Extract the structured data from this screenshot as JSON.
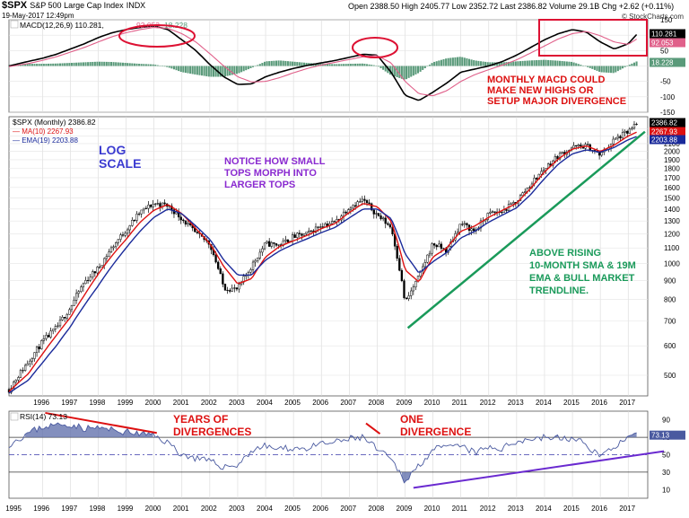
{
  "header": {
    "symbol": "$SPX",
    "name": "S&P 500 Large Cap Index",
    "exchange": "INDX",
    "date": "19-May-2017 12:49pm",
    "ohlc": "Open 2388.50  High 2405.77  Low 2352.72  Last 2386.82  Volume 29.1B  Chg +2.62 (+0.11%)",
    "credit": "© StockCharts.com"
  },
  "chart_data": [
    {
      "type": "line",
      "panel": "MACD",
      "legend": "MACD(12,26,9) 110.281, 92.053, 18.228",
      "legend_values": [
        "110.281",
        "92.053",
        "18.228"
      ],
      "ylim": [
        -150,
        150
      ],
      "ticks": [
        150,
        100,
        50,
        0,
        -50,
        -100,
        -150
      ],
      "tick_labels": [
        "150",
        "100",
        "50",
        "",
        "-50",
        "-100",
        "-150"
      ],
      "last_labels": [
        "110.281",
        "92.053",
        "18.228"
      ],
      "x": [
        1994.8,
        1995.5,
        1996,
        1996.5,
        1997,
        1997.5,
        1998,
        1998.5,
        1999,
        1999.5,
        2000,
        2000.5,
        2001,
        2001.5,
        2002,
        2002.5,
        2003,
        2003.5,
        2004,
        2004.5,
        2005,
        2005.5,
        2006,
        2006.5,
        2007,
        2007.5,
        2008,
        2008.5,
        2009,
        2009.5,
        2010,
        2010.5,
        2011,
        2011.5,
        2012,
        2012.5,
        2013,
        2013.5,
        2014,
        2014.5,
        2015,
        2015.5,
        2016,
        2016.5,
        2017,
        2017.38
      ],
      "series": [
        {
          "name": "MACD",
          "color": "#000000",
          "values": [
            0,
            15,
            25,
            38,
            55,
            72,
            92,
            108,
            118,
            125,
            130,
            118,
            85,
            50,
            5,
            -35,
            -60,
            -58,
            -35,
            -20,
            -8,
            2,
            10,
            18,
            28,
            38,
            35,
            -20,
            -95,
            -112,
            -85,
            -55,
            -20,
            -10,
            0,
            15,
            35,
            60,
            85,
            105,
            118,
            110,
            78,
            55,
            72,
            110
          ]
        },
        {
          "name": "Signal",
          "color": "#e0608a",
          "values": [
            -2,
            8,
            18,
            30,
            45,
            60,
            78,
            95,
            108,
            118,
            125,
            122,
            105,
            78,
            40,
            0,
            -35,
            -52,
            -50,
            -38,
            -22,
            -8,
            3,
            12,
            21,
            30,
            34,
            10,
            -50,
            -90,
            -97,
            -80,
            -50,
            -28,
            -12,
            3,
            20,
            42,
            65,
            88,
            105,
            112,
            98,
            78,
            70,
            92
          ]
        }
      ],
      "histogram": {
        "name": "Histogram",
        "values": [
          2,
          7,
          7,
          8,
          10,
          12,
          14,
          13,
          10,
          7,
          5,
          -4,
          -20,
          -28,
          -35,
          -35,
          -25,
          -6,
          15,
          18,
          14,
          10,
          7,
          6,
          7,
          8,
          1,
          -30,
          -45,
          -22,
          12,
          25,
          30,
          18,
          12,
          12,
          15,
          18,
          20,
          17,
          13,
          -2,
          -20,
          -23,
          2,
          18
        ]
      },
      "annotation": {
        "lines": [
          "MONTHLY MACD COULD",
          "MAKE NEW HIGHS OR",
          "SETUP MAJOR DIVERGENCE"
        ],
        "color": "#dd1111"
      }
    },
    {
      "type": "candlestick",
      "panel": "Price",
      "scale": "log",
      "legend_title": "$SPX (Monthly) 2386.82",
      "legend_ma": "MA(10) 2267.93",
      "legend_ema": "EMA(19) 2203.88",
      "last_labels": [
        "2386.82",
        "2267.93",
        "2203.88"
      ],
      "ylim": [
        440,
        2480
      ],
      "ticks": [
        500,
        600,
        700,
        800,
        900,
        1000,
        1100,
        1200,
        1300,
        1400,
        1500,
        1600,
        1700,
        1800,
        1900,
        2000,
        2100,
        2200,
        2300
      ],
      "x_labels": [
        "1996",
        "1997",
        "1998",
        "1999",
        "2000",
        "2001",
        "2002",
        "2003",
        "2004",
        "2005",
        "2006",
        "2007",
        "2008",
        "2009",
        "2010",
        "2011",
        "2012",
        "2013",
        "2014",
        "2015",
        "2016",
        "2017"
      ],
      "x": [
        1994.8,
        1995.5,
        1996,
        1996.5,
        1997,
        1997.5,
        1998,
        1998.5,
        1999,
        1999.5,
        2000,
        2000.5,
        2001,
        2001.5,
        2002,
        2002.5,
        2003,
        2003.5,
        2004,
        2004.5,
        2005,
        2005.5,
        2006,
        2006.5,
        2007,
        2007.5,
        2008,
        2008.5,
        2009,
        2009.5,
        2010,
        2010.5,
        2011,
        2011.5,
        2012,
        2012.5,
        2013,
        2013.5,
        2014,
        2014.5,
        2015,
        2015.5,
        2016,
        2016.5,
        2017,
        2017.38
      ],
      "series": [
        {
          "name": "Close",
          "color": "#000000",
          "values": [
            458,
            545,
            615,
            670,
            760,
            890,
            970,
            1105,
            1230,
            1372,
            1450,
            1430,
            1320,
            1200,
            1130,
            860,
            850,
            985,
            1130,
            1120,
            1180,
            1200,
            1270,
            1290,
            1420,
            1480,
            1350,
            1250,
            780,
            920,
            1130,
            1080,
            1280,
            1220,
            1360,
            1380,
            1470,
            1630,
            1800,
            1950,
            2050,
            2070,
            1950,
            2150,
            2260,
            2386
          ]
        },
        {
          "name": "MA(10)",
          "color": "#dd1111",
          "values": [
            452,
            505,
            570,
            640,
            715,
            820,
            935,
            1050,
            1160,
            1290,
            1390,
            1440,
            1360,
            1240,
            1130,
            980,
            880,
            910,
            1040,
            1110,
            1150,
            1190,
            1240,
            1280,
            1370,
            1450,
            1420,
            1300,
            960,
            890,
            1040,
            1100,
            1220,
            1260,
            1330,
            1390,
            1450,
            1590,
            1760,
            1910,
            2030,
            2070,
            2000,
            2080,
            2200,
            2268
          ]
        },
        {
          "name": "EMA(19)",
          "color": "#1a2a9a",
          "values": [
            448,
            485,
            540,
            600,
            675,
            770,
            870,
            985,
            1100,
            1220,
            1330,
            1400,
            1360,
            1260,
            1160,
            1020,
            930,
            930,
            1020,
            1080,
            1125,
            1165,
            1210,
            1250,
            1325,
            1400,
            1400,
            1320,
            1060,
            940,
            1010,
            1070,
            1170,
            1220,
            1290,
            1350,
            1410,
            1530,
            1690,
            1850,
            1970,
            2020,
            1990,
            2050,
            2150,
            2204
          ]
        }
      ],
      "trendline": {
        "x": [
          2009.1,
          2017.6
        ],
        "y": [
          670,
          2260
        ],
        "color": "#1a9a5a"
      },
      "annotations": [
        {
          "id": "log",
          "lines": [
            "LOG",
            "SCALE"
          ],
          "color": "#3a3ad0"
        },
        {
          "id": "tops",
          "lines": [
            "NOTICE HOW SMALL",
            "TOPS MORPH INTO",
            "LARGER TOPS"
          ],
          "color": "#8a2ad0"
        },
        {
          "id": "rising",
          "lines": [
            "ABOVE RISING",
            "10-MONTH SMA & 19M",
            "EMA & BULL MARKET",
            "TRENDLINE."
          ],
          "color": "#1a9a5a"
        }
      ]
    },
    {
      "type": "area",
      "panel": "RSI",
      "legend": "RSI(14) 73.13",
      "last_label": "73.13",
      "ylim": [
        0,
        100
      ],
      "ticks": [
        90,
        70,
        50,
        30,
        10
      ],
      "x_labels": [
        "1995",
        "1996",
        "1997",
        "1998",
        "1999",
        "2000",
        "2001",
        "2002",
        "2003",
        "2004",
        "2005",
        "2006",
        "2007",
        "2008",
        "2009",
        "2010",
        "2011",
        "2012",
        "2013",
        "2014",
        "2015",
        "2016",
        "2017"
      ],
      "x": [
        1994.8,
        1995.5,
        1996,
        1996.5,
        1997,
        1997.5,
        1998,
        1998.5,
        1999,
        1999.5,
        2000,
        2000.5,
        2001,
        2001.5,
        2002,
        2002.5,
        2003,
        2003.5,
        2004,
        2004.5,
        2005,
        2005.5,
        2006,
        2006.5,
        2007,
        2007.5,
        2008,
        2008.5,
        2009,
        2009.5,
        2010,
        2010.5,
        2011,
        2011.5,
        2012,
        2012.5,
        2013,
        2013.5,
        2014,
        2014.5,
        2015,
        2015.5,
        2016,
        2016.5,
        2017,
        2017.38
      ],
      "series": [
        {
          "name": "RSI",
          "color": "#4a5aa0",
          "values": [
            62,
            75,
            82,
            84,
            85,
            80,
            81,
            78,
            76,
            74,
            72,
            64,
            50,
            46,
            42,
            36,
            38,
            55,
            60,
            56,
            58,
            57,
            62,
            64,
            68,
            70,
            56,
            44,
            20,
            38,
            56,
            58,
            60,
            52,
            58,
            57,
            66,
            68,
            70,
            69,
            68,
            62,
            48,
            60,
            68,
            73
          ]
        }
      ],
      "annotations": [
        {
          "id": "years",
          "lines": [
            "YEARS OF",
            "DIVERGENCES"
          ],
          "color": "#dd1111"
        },
        {
          "id": "one",
          "lines": [
            "ONE",
            "DIVERGENCE"
          ],
          "color": "#dd1111"
        }
      ]
    }
  ]
}
